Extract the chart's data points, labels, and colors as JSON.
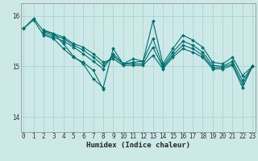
{
  "xlabel": "Humidex (Indice chaleur)",
  "bg_color": "#cce9e7",
  "grid_color": "#aad4d0",
  "line_color": "#007070",
  "ylim": [
    13.7,
    16.25
  ],
  "xlim": [
    -0.3,
    23.3
  ],
  "yticks": [
    14,
    15,
    16
  ],
  "xticks": [
    0,
    1,
    2,
    3,
    4,
    5,
    6,
    7,
    8,
    9,
    10,
    11,
    12,
    13,
    14,
    15,
    16,
    17,
    18,
    19,
    20,
    21,
    22,
    23
  ],
  "lines": [
    {
      "x": [
        0,
        1,
        2,
        3,
        4,
        5,
        6,
        7,
        8,
        9,
        10,
        11,
        12,
        13,
        14,
        15,
        16,
        17,
        18,
        19,
        20,
        21,
        22,
        23
      ],
      "y": [
        15.75,
        15.95,
        15.7,
        15.65,
        15.45,
        15.2,
        15.05,
        14.75,
        14.58,
        15.35,
        15.05,
        15.15,
        15.1,
        15.9,
        15.05,
        15.35,
        15.62,
        15.52,
        15.38,
        15.08,
        15.05,
        15.18,
        14.82,
        15.0
      ]
    },
    {
      "x": [
        0,
        1,
        2,
        3,
        4,
        5,
        6,
        7,
        8,
        9,
        10,
        11,
        12,
        13,
        14,
        15,
        16,
        17,
        18,
        19,
        20,
        21,
        22,
        23
      ],
      "y": [
        15.75,
        null,
        15.65,
        15.58,
        15.5,
        15.38,
        15.25,
        15.1,
        14.95,
        15.25,
        15.05,
        15.08,
        15.1,
        15.55,
        15.0,
        15.28,
        15.5,
        15.42,
        15.28,
        15.02,
        15.0,
        15.1,
        14.72,
        15.0
      ]
    },
    {
      "x": [
        0,
        1,
        2,
        3,
        4,
        5,
        6,
        7,
        8,
        9,
        10,
        11,
        12,
        13,
        14,
        15,
        16,
        17,
        18,
        19,
        20,
        21,
        22,
        23
      ],
      "y": [
        15.75,
        null,
        15.68,
        15.62,
        15.55,
        15.42,
        15.32,
        15.18,
        15.02,
        15.2,
        15.05,
        15.05,
        15.05,
        15.38,
        14.98,
        15.22,
        15.42,
        15.35,
        15.22,
        14.98,
        14.98,
        15.05,
        14.65,
        15.0
      ]
    },
    {
      "x": [
        0,
        1,
        2,
        3,
        4,
        5,
        6,
        7,
        8,
        9,
        10,
        11,
        12,
        13,
        14,
        15,
        16,
        17,
        18,
        19,
        20,
        21,
        22,
        23
      ],
      "y": [
        15.75,
        null,
        15.72,
        15.65,
        15.58,
        15.45,
        15.38,
        15.25,
        15.08,
        15.15,
        15.02,
        15.02,
        15.02,
        15.22,
        14.95,
        15.18,
        15.35,
        15.28,
        15.18,
        14.95,
        14.95,
        15.02,
        14.58,
        15.0
      ]
    },
    {
      "x": [
        0,
        1,
        2,
        3,
        4,
        5,
        6,
        7,
        8
      ],
      "y": [
        15.75,
        15.92,
        15.62,
        15.55,
        15.35,
        15.18,
        15.08,
        14.92,
        14.55
      ]
    }
  ]
}
